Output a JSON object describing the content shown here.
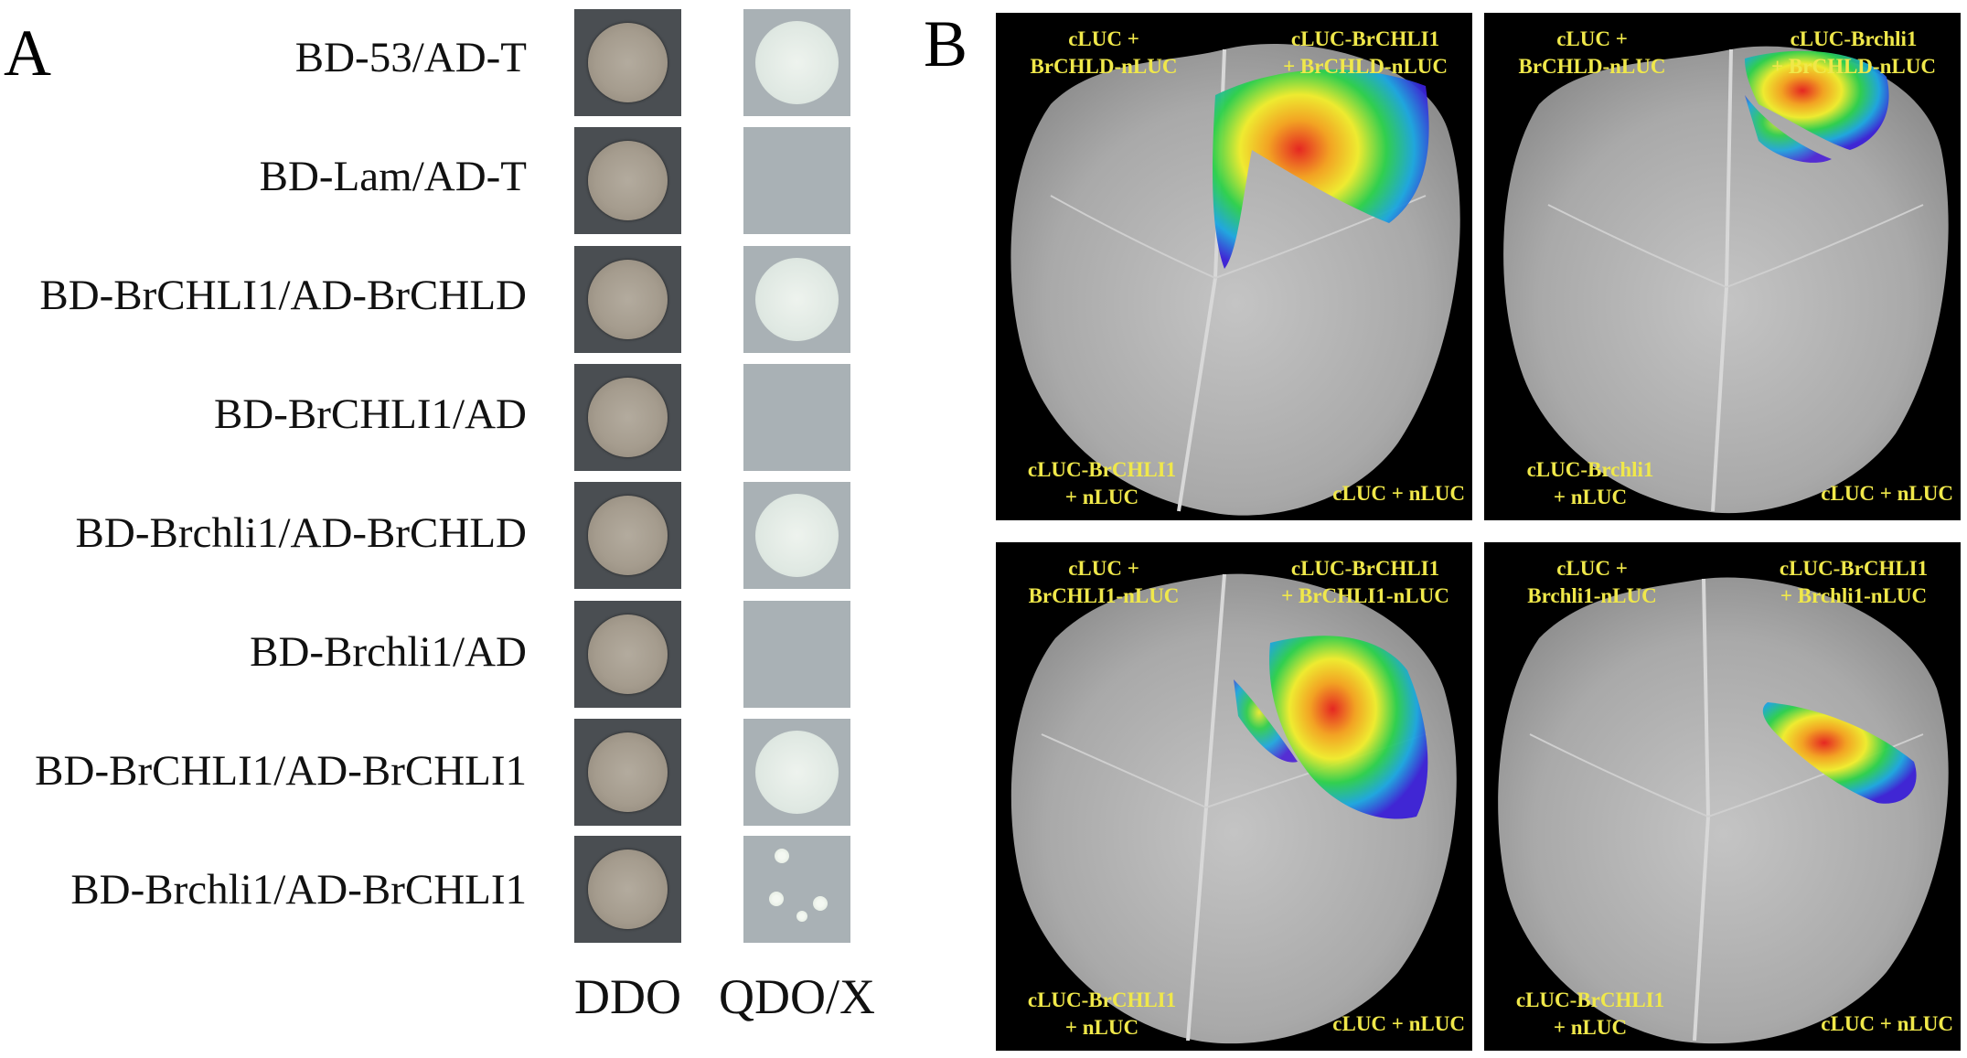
{
  "panels": {
    "a_label": "A",
    "b_label": "B"
  },
  "panel_a": {
    "rows": [
      {
        "label": "BD-53/AD-T",
        "qdo_growth": "full"
      },
      {
        "label": "BD-Lam/AD-T",
        "qdo_growth": "none"
      },
      {
        "label": "BD-BrCHLI1/AD-BrCHLD",
        "qdo_growth": "full"
      },
      {
        "label": "BD-BrCHLI1/AD",
        "qdo_growth": "none"
      },
      {
        "label": "BD-Brchli1/AD-BrCHLD",
        "qdo_growth": "full"
      },
      {
        "label": "BD-Brchli1/AD",
        "qdo_growth": "none"
      },
      {
        "label": "BD-BrCHLI1/AD-BrCHLI1",
        "qdo_growth": "full"
      },
      {
        "label": "BD-Brchli1/AD-BrCHLI1",
        "qdo_growth": "few-colonies"
      }
    ],
    "columns": {
      "ddo": "DDO",
      "qdo": "QDO/X"
    }
  },
  "panel_b": {
    "leaves": [
      {
        "top_left": [
          "cLUC +",
          "BrCHLD-nLUC"
        ],
        "top_right": [
          "cLUC-BrCHLI1",
          "+ BrCHLD-nLUC"
        ],
        "bottom_left": [
          "cLUC-BrCHLI1",
          "+ nLUC"
        ],
        "bottom_right": [
          "cLUC + nLUC"
        ]
      },
      {
        "top_left": [
          "cLUC +",
          "BrCHLD-nLUC"
        ],
        "top_right": [
          "cLUC-Brchli1",
          "+ BrCHLD-nLUC"
        ],
        "bottom_left": [
          "cLUC-Brchli1",
          "+ nLUC"
        ],
        "bottom_right": [
          "cLUC + nLUC"
        ]
      },
      {
        "top_left": [
          "cLUC +",
          "BrCHLI1-nLUC"
        ],
        "top_right": [
          "cLUC-BrCHLI1",
          "+ BrCHLI1-nLUC"
        ],
        "bottom_left": [
          "cLUC-BrCHLI1",
          "+ nLUC"
        ],
        "bottom_right": [
          "cLUC + nLUC"
        ]
      },
      {
        "top_left": [
          "cLUC +",
          "Brchli1-nLUC"
        ],
        "top_right": [
          "cLUC-BrCHLI1",
          "+ Brchli1-nLUC"
        ],
        "bottom_left": [
          "cLUC-BrCHLI1",
          "+ nLUC"
        ],
        "bottom_right": [
          "cLUC + nLUC"
        ]
      }
    ],
    "label_color": "#f0e84a"
  }
}
